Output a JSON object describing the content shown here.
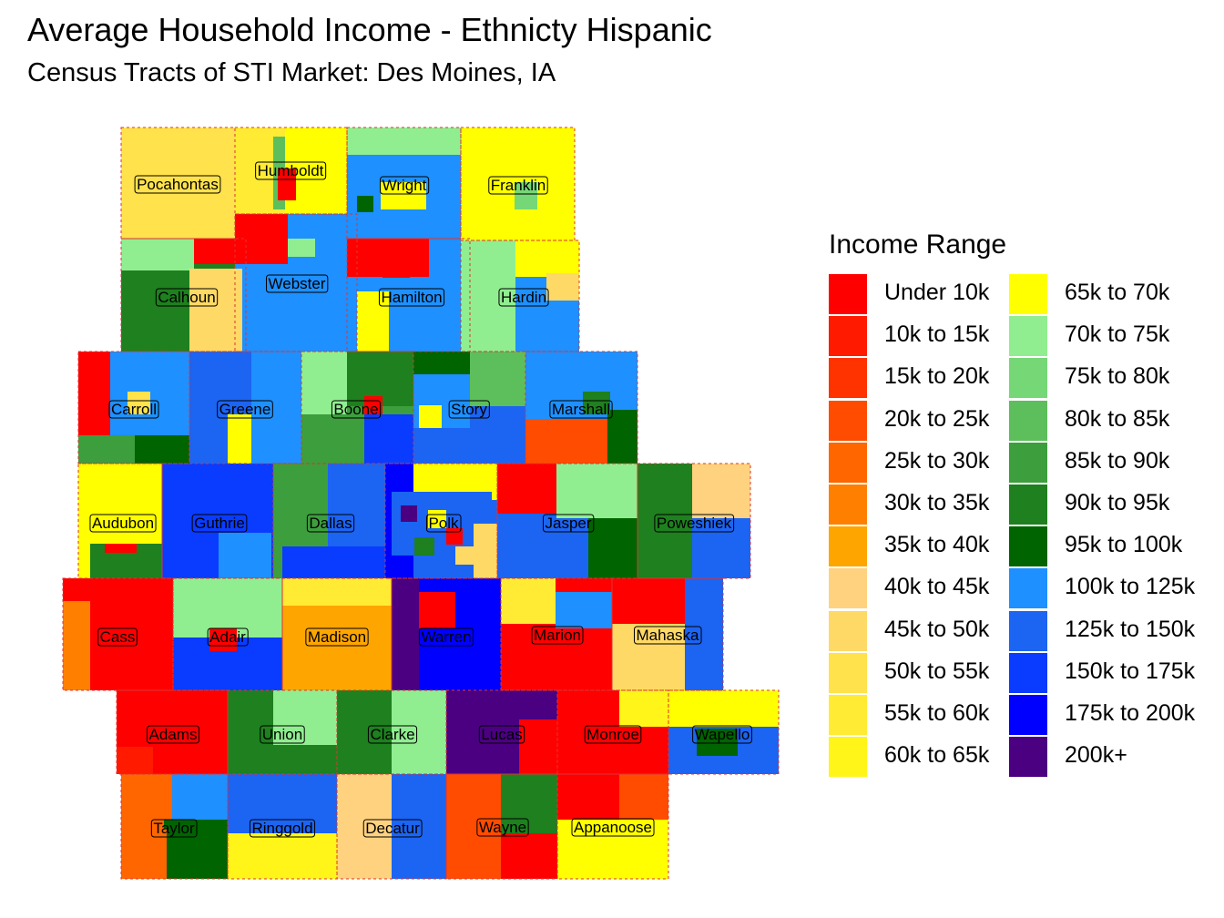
{
  "title": "Average Household Income - Ethnicty Hispanic",
  "subtitle": "Census Tracts of STI Market: Des Moines, IA",
  "legend": {
    "title": "Income Range",
    "items": [
      {
        "label": "Under 10k",
        "color": "#ff0000"
      },
      {
        "label": "10k to 15k",
        "color": "#ff1a00"
      },
      {
        "label": "15k to 20k",
        "color": "#ff3300"
      },
      {
        "label": "20k to 25k",
        "color": "#ff4c00"
      },
      {
        "label": "25k to 30k",
        "color": "#ff6600"
      },
      {
        "label": "30k to 35k",
        "color": "#ff8000"
      },
      {
        "label": "35k to 40k",
        "color": "#ffa500"
      },
      {
        "label": "40k to 45k",
        "color": "#ffd27f"
      },
      {
        "label": "45k to 50k",
        "color": "#ffd966"
      },
      {
        "label": "50k to 55k",
        "color": "#ffe24c"
      },
      {
        "label": "55k to 60k",
        "color": "#ffeb33"
      },
      {
        "label": "60k to 65k",
        "color": "#fff519"
      },
      {
        "label": "65k to 70k",
        "color": "#ffff00"
      },
      {
        "label": "70k to 75k",
        "color": "#90ee90"
      },
      {
        "label": "75k to 80k",
        "color": "#76d776"
      },
      {
        "label": "80k to 85k",
        "color": "#5cbf5c"
      },
      {
        "label": "85k to 90k",
        "color": "#3d9e3d"
      },
      {
        "label": "90k to 95k",
        "color": "#1e801e"
      },
      {
        "label": "95k to 100k",
        "color": "#006400"
      },
      {
        "label": "100k to 125k",
        "color": "#1e90ff"
      },
      {
        "label": "125k to 150k",
        "color": "#1c64f2"
      },
      {
        "label": "150k to 175k",
        "color": "#0a3cff"
      },
      {
        "label": "175k to 200k",
        "color": "#0000ff"
      },
      {
        "label": "200k+",
        "color": "#4b0082"
      }
    ]
  },
  "counties": [
    {
      "name": "Pocahontas",
      "fill": "#ffe24c",
      "bracket": "50k to 55k"
    },
    {
      "name": "Humboldt",
      "fill": "#5cbf5c",
      "bracket": "80k to 85k"
    },
    {
      "name": "Wright",
      "fill": "#1e90ff",
      "bracket": "100k to 125k"
    },
    {
      "name": "Franklin",
      "fill": "#ffff00",
      "bracket": "65k to 70k"
    },
    {
      "name": "Calhoun",
      "fill": "#1e801e",
      "bracket": "90k to 95k"
    },
    {
      "name": "Webster",
      "fill": "#1e90ff",
      "bracket": "100k to 125k"
    },
    {
      "name": "Hamilton",
      "fill": "#1e90ff",
      "bracket": "100k to 125k"
    },
    {
      "name": "Hardin",
      "fill": "#1e90ff",
      "bracket": "100k to 125k"
    },
    {
      "name": "Carroll",
      "fill": "#1e90ff",
      "bracket": "100k to 125k"
    },
    {
      "name": "Greene",
      "fill": "#1c64f2",
      "bracket": "125k to 150k"
    },
    {
      "name": "Boone",
      "fill": "#3d9e3d",
      "bracket": "85k to 90k"
    },
    {
      "name": "Story",
      "fill": "#1c64f2",
      "bracket": "125k to 150k"
    },
    {
      "name": "Marshall",
      "fill": "#1e90ff",
      "bracket": "100k to 125k"
    },
    {
      "name": "Audubon",
      "fill": "#ffff00",
      "bracket": "65k to 70k"
    },
    {
      "name": "Guthrie",
      "fill": "#0a3cff",
      "bracket": "150k to 175k"
    },
    {
      "name": "Dallas",
      "fill": "#1c64f2",
      "bracket": "125k to 150k"
    },
    {
      "name": "Polk",
      "fill": "#1c64f2",
      "bracket": "125k to 150k"
    },
    {
      "name": "Jasper",
      "fill": "#1c64f2",
      "bracket": "125k to 150k"
    },
    {
      "name": "Poweshiek",
      "fill": "#1c64f2",
      "bracket": "125k to 150k"
    },
    {
      "name": "Cass",
      "fill": "#ff0000",
      "bracket": "Under 10k"
    },
    {
      "name": "Adair",
      "fill": "#90ee90",
      "bracket": "70k to 75k"
    },
    {
      "name": "Madison",
      "fill": "#ffa500",
      "bracket": "35k to 40k"
    },
    {
      "name": "Warren",
      "fill": "#0000ff",
      "bracket": "175k to 200k"
    },
    {
      "name": "Marion",
      "fill": "#ff0000",
      "bracket": "Under 10k"
    },
    {
      "name": "Mahaska",
      "fill": "#ffd966",
      "bracket": "45k to 50k"
    },
    {
      "name": "Adams",
      "fill": "#ff0000",
      "bracket": "Under 10k"
    },
    {
      "name": "Union",
      "fill": "#1e801e",
      "bracket": "90k to 95k"
    },
    {
      "name": "Clarke",
      "fill": "#90ee90",
      "bracket": "70k to 75k"
    },
    {
      "name": "Lucas",
      "fill": "#4b0082",
      "bracket": "200k+"
    },
    {
      "name": "Monroe",
      "fill": "#ff0000",
      "bracket": "Under 10k"
    },
    {
      "name": "Wapello",
      "fill": "#1c64f2",
      "bracket": "125k to 150k"
    },
    {
      "name": "Taylor",
      "fill": "#ff6600",
      "bracket": "25k to 30k"
    },
    {
      "name": "Ringgold",
      "fill": "#1c64f2",
      "bracket": "125k to 150k"
    },
    {
      "name": "Decatur",
      "fill": "#1c64f2",
      "bracket": "125k to 150k"
    },
    {
      "name": "Wayne",
      "fill": "#ff0000",
      "bracket": "Under 10k"
    },
    {
      "name": "Appanoose",
      "fill": "#ff0000",
      "bracket": "Under 10k"
    }
  ]
}
